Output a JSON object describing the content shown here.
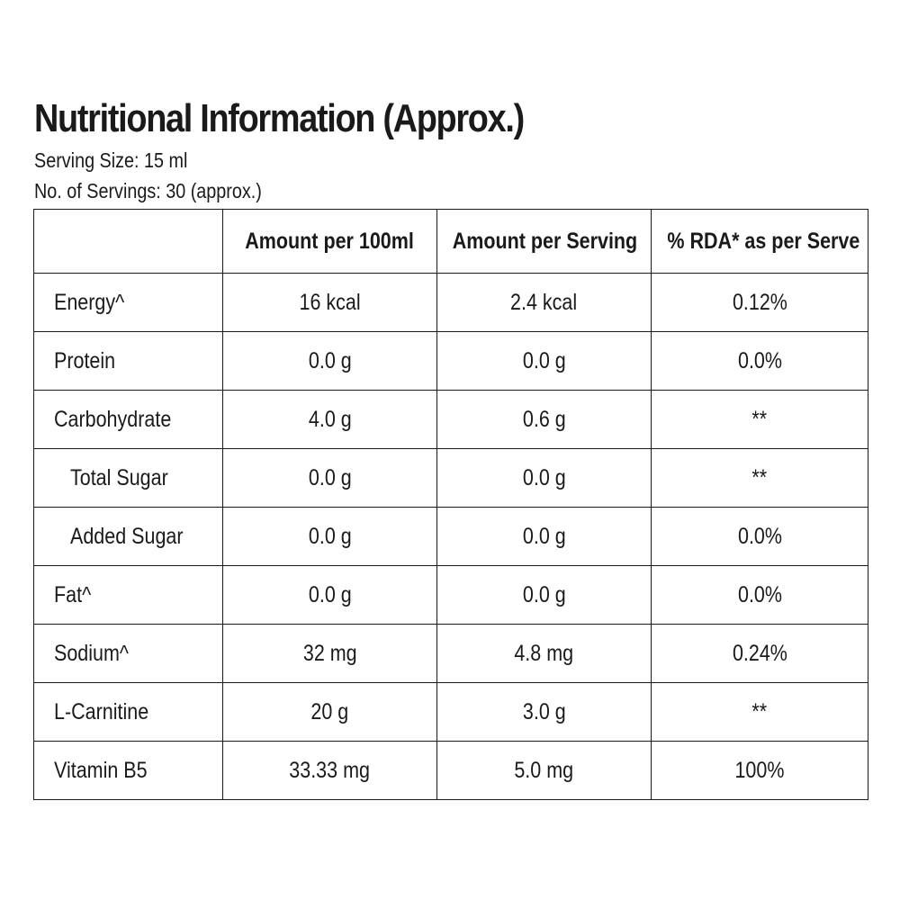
{
  "title": "Nutritional Information (Approx.)",
  "serving_size": "Serving Size: 15 ml",
  "servings": "No. of Servings: 30 (approx.)",
  "table": {
    "headers": [
      "",
      "Amount per 100ml",
      "Amount per Serving",
      "% RDA* as per Serve"
    ],
    "rows": [
      {
        "name": "Energy^",
        "per100": "16 kcal",
        "perServing": "2.4 kcal",
        "rda": "0.12%"
      },
      {
        "name": "Protein",
        "per100": "0.0 g",
        "perServing": "0.0 g",
        "rda": "0.0%"
      },
      {
        "name": "Carbohydrate",
        "per100": "4.0 g",
        "perServing": "0.6 g",
        "rda": "**"
      },
      {
        "name": "Total Sugar",
        "per100": "0.0 g",
        "perServing": "0.0 g",
        "rda": "**"
      },
      {
        "name": "Added Sugar",
        "per100": "0.0 g",
        "perServing": "0.0 g",
        "rda": "0.0%"
      },
      {
        "name": "Fat^",
        "per100": "0.0 g",
        "perServing": "0.0 g",
        "rda": "0.0%"
      },
      {
        "name": "Sodium^",
        "per100": "32 mg",
        "perServing": "4.8 mg",
        "rda": "0.24%"
      },
      {
        "name": "L-Carnitine",
        "per100": "20 g",
        "perServing": "3.0 g",
        "rda": "**"
      },
      {
        "name": "Vitamin B5",
        "per100": "33.33 mg",
        "perServing": "5.0 mg",
        "rda": "100%"
      }
    ]
  }
}
